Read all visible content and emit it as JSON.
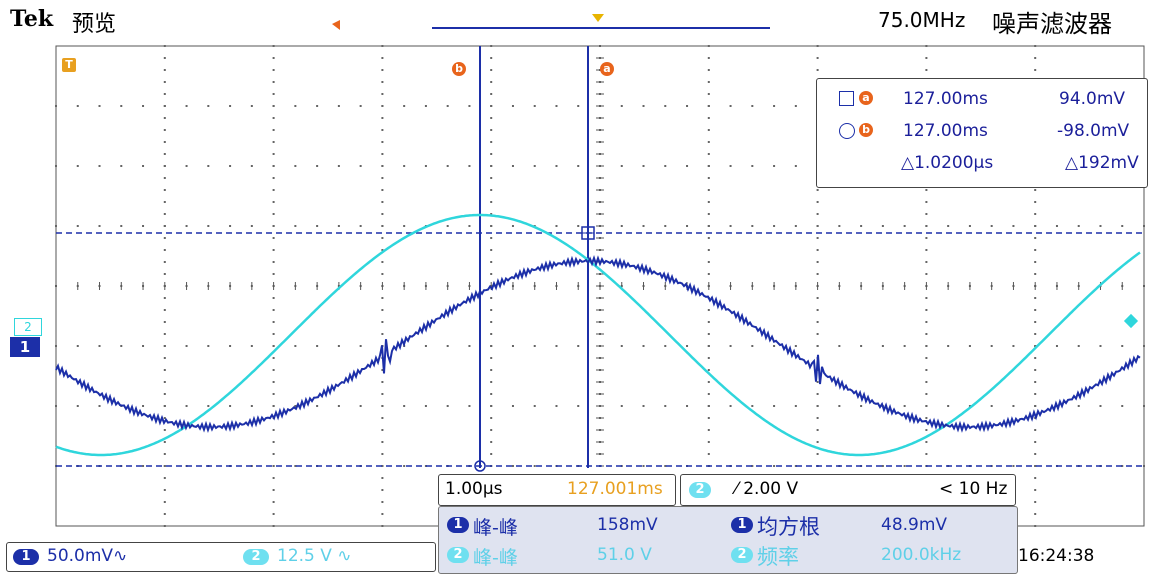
{
  "header": {
    "brand": "Tek",
    "mode": "预览",
    "bandwidth": "75.0MHz",
    "filter_label": "噪声滤波器"
  },
  "cursor_readout": {
    "a_time": "127.00ms",
    "a_voltage": "94.0mV",
    "b_time": "127.00ms",
    "b_voltage": "-98.0mV",
    "delta_time": "△1.0200µs",
    "delta_voltage": "△192mV"
  },
  "markers": {
    "a_label": "a",
    "b_label": "b",
    "trigger_t": "T"
  },
  "channel_markers": {
    "ch1": "1",
    "ch2": "2"
  },
  "timebase": {
    "scale": "1.00µs",
    "position": "127.001ms"
  },
  "trigger": {
    "channel": "2",
    "slope_level": "⁄ 2.00 V",
    "frequency": "< 10 Hz"
  },
  "measurements": [
    {
      "channel": "1",
      "name": "峰-峰",
      "value": "158mV"
    },
    {
      "channel": "1",
      "name": "均方根",
      "value": "48.9mV"
    },
    {
      "channel": "2",
      "name": "峰-峰",
      "value": "51.0 V"
    },
    {
      "channel": "2",
      "name": "频率",
      "value": "200.0kHz"
    }
  ],
  "bottom": {
    "ch1_label": "1",
    "ch1_scale": "50.0mV∿",
    "ch2_label": "2",
    "ch2_scale": "12.5 V ∿",
    "clock": "16:24:38"
  },
  "colors": {
    "ch1": "#1c2fa8",
    "ch2": "#2fd6dc",
    "cursor": "#1c2fa8",
    "marker": "#e8641c"
  }
}
